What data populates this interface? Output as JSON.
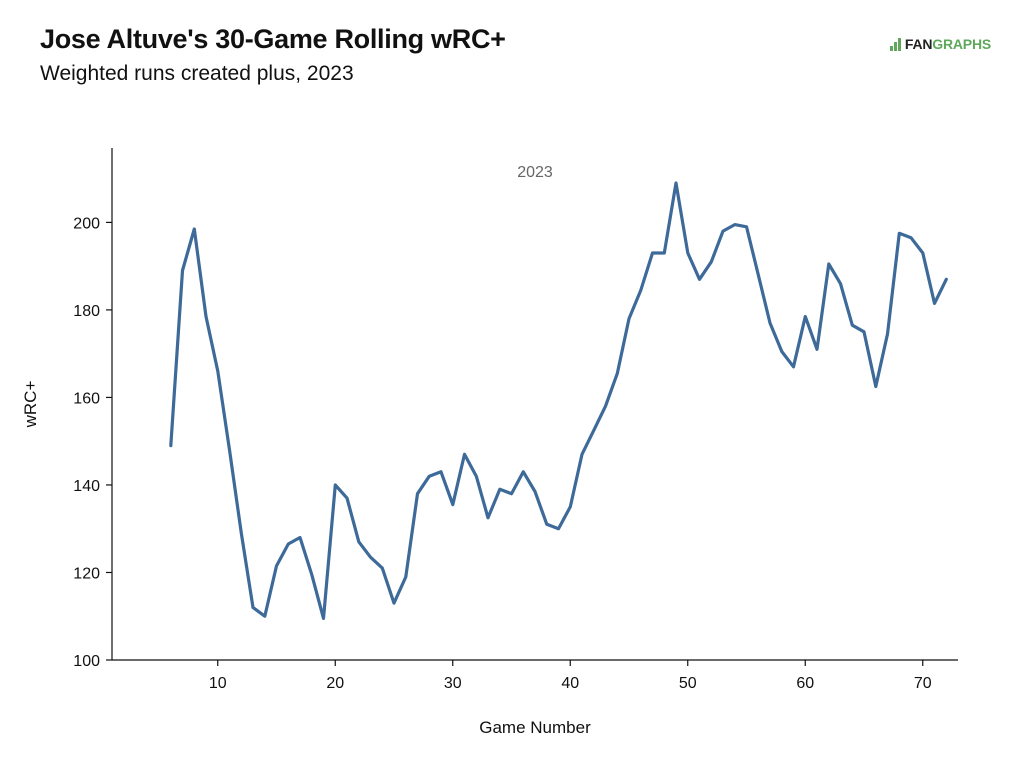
{
  "title": "Jose Altuve's 30-Game Rolling wRC+",
  "subtitle": "Weighted runs created plus, 2023",
  "logo": {
    "part1": "FAN",
    "part2": "GRAPHS",
    "color": "#5fa85b"
  },
  "chart_data": {
    "type": "line",
    "panel_label": "2023",
    "xlabel": "Game Number",
    "ylabel": "wRC+",
    "xlim": [
      1,
      73
    ],
    "ylim": [
      100,
      217
    ],
    "xticks": [
      10,
      20,
      30,
      40,
      50,
      60,
      70
    ],
    "yticks": [
      100,
      120,
      140,
      160,
      180,
      200
    ],
    "line_color": "#3d6a99",
    "grid": false,
    "series": [
      {
        "x": [
          6,
          7,
          8,
          9,
          10,
          11,
          12,
          13,
          14,
          15,
          16,
          17,
          18,
          19,
          20,
          21,
          22,
          23,
          24,
          25,
          26,
          27,
          28,
          29,
          30,
          31,
          32,
          33,
          34,
          35,
          36,
          37,
          38,
          39,
          40,
          41,
          42,
          43,
          44,
          45,
          46,
          47,
          48,
          49,
          50,
          51,
          52,
          53,
          54,
          55,
          56,
          57,
          58,
          59,
          60,
          61,
          62,
          63,
          64,
          65,
          66,
          67,
          68,
          69,
          70,
          71,
          72
        ],
        "y": [
          149,
          189,
          198.5,
          178.5,
          166,
          148,
          129,
          112,
          110,
          121.5,
          126.5,
          128,
          119.5,
          109.5,
          140,
          137,
          127,
          123.5,
          121,
          113,
          119,
          138,
          142,
          143,
          135.5,
          147,
          142,
          132.5,
          139,
          138,
          143,
          138.5,
          131,
          130,
          135,
          147,
          152.5,
          158,
          165.5,
          178,
          184.5,
          193,
          193,
          209,
          193,
          187,
          191,
          198,
          199.5,
          199,
          188,
          177,
          170.5,
          167,
          178.5,
          171,
          190.5,
          186,
          176.5,
          175,
          162.5,
          174.5,
          197.5,
          196.5,
          193,
          181.5,
          187
        ]
      }
    ]
  }
}
